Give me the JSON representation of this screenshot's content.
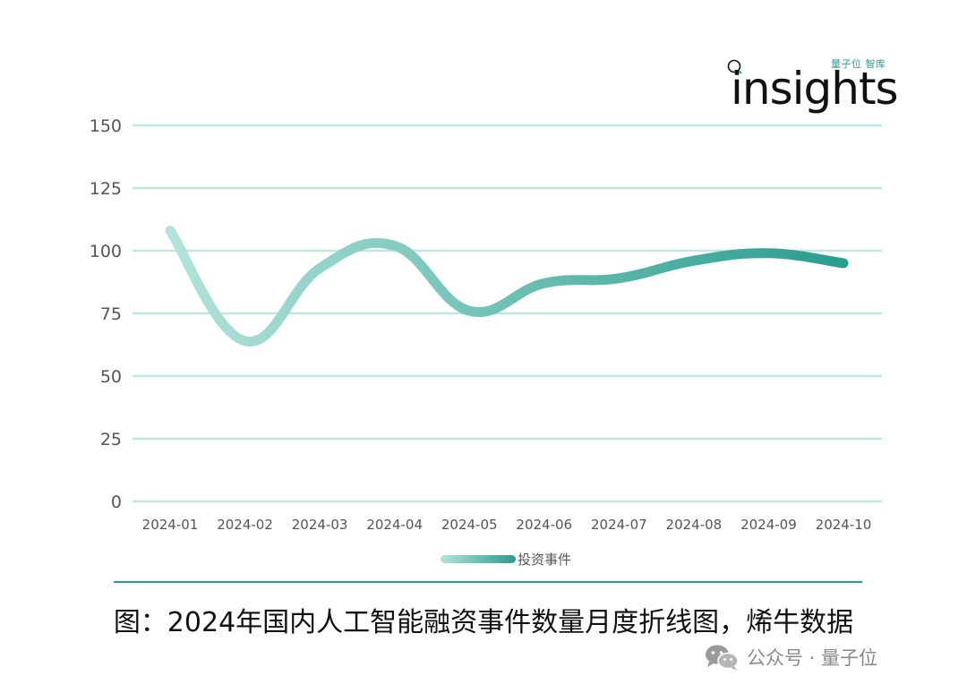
{
  "logo": {
    "small_text": "量子位 智库",
    "wordmark": "insights"
  },
  "chart_data": {
    "type": "line",
    "categories": [
      "2024-01",
      "2024-02",
      "2024-03",
      "2024-04",
      "2024-05",
      "2024-06",
      "2024-07",
      "2024-08",
      "2024-09",
      "2024-10"
    ],
    "series": [
      {
        "name": "投资事件",
        "values": [
          108,
          64,
          93,
          102,
          76,
          87,
          89,
          96,
          99,
          95
        ]
      }
    ],
    "yticks": [
      0,
      25,
      50,
      75,
      100,
      125,
      150
    ],
    "ylim": [
      0,
      150
    ],
    "grid": true,
    "legend_position": "bottom-center",
    "colors": {
      "line_start": "#b2e3da",
      "line_end": "#2a9d8f",
      "grid": "#bfe6df",
      "tick_label": "#555555"
    }
  },
  "legend": {
    "label": "投资事件"
  },
  "caption": "图：2024年国内人工智能融资事件数量月度折线图，烯牛数据",
  "watermark": {
    "icon": "wechat-icon",
    "text": "公众号 · 量子位"
  }
}
